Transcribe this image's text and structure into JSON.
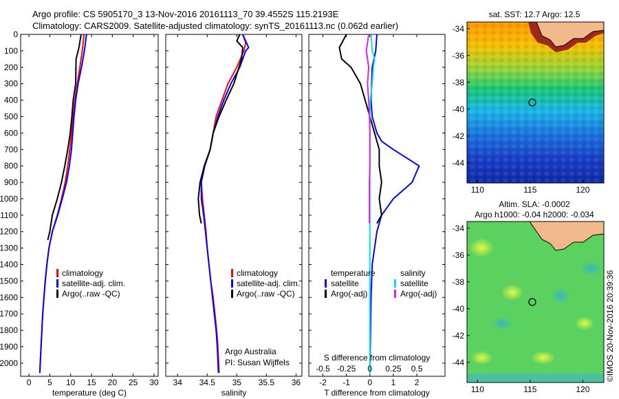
{
  "header": {
    "line1": "Argo profile: CS 5905170_3 13-Nov-2016 20161113_70 39.4552S 115.2193E",
    "line2": "Climatology: CARS2009. Satellite-adjusted climatology: synTS_20161113.nc (0.062d earlier)"
  },
  "chart_data": [
    {
      "type": "line",
      "id": "temperature",
      "xlabel": "temperature (deg C)",
      "ylabel": "",
      "xlim": [
        -2,
        31
      ],
      "ylim": [
        0,
        2080
      ],
      "xticks": [
        0,
        5,
        10,
        15,
        20,
        25,
        30
      ],
      "yticks": [
        0,
        100,
        200,
        300,
        400,
        500,
        600,
        700,
        800,
        900,
        1000,
        1100,
        1200,
        1300,
        1400,
        1500,
        1600,
        1700,
        1800,
        1900,
        2000
      ],
      "y_reversed": true,
      "legend": [
        "climatology",
        "satellite-adj. clim.",
        "Argo(..raw -QC)"
      ],
      "series": [
        {
          "name": "climatology",
          "color": "#ff0000",
          "x": [
            13.2,
            12.8,
            12.2,
            11.6,
            11.0,
            10.6,
            10.2,
            9.8,
            9.3,
            8.7,
            7.8,
            6.8,
            5.6,
            4.8,
            4.3,
            3.9,
            3.6,
            3.3,
            3.1,
            2.9,
            2.7,
            2.6
          ],
          "y": [
            0,
            100,
            200,
            300,
            400,
            500,
            600,
            700,
            800,
            900,
            1000,
            1100,
            1200,
            1300,
            1400,
            1500,
            1600,
            1700,
            1800,
            1900,
            2000,
            2060
          ]
        },
        {
          "name": "satellite-adj. clim.",
          "color": "#0000ff",
          "x": [
            13.8,
            13.3,
            12.6,
            11.8,
            11.2,
            10.8,
            10.5,
            10.2,
            9.7,
            9.0,
            8.0,
            6.9,
            5.6,
            4.8,
            4.3,
            3.9,
            3.6,
            3.3,
            3.1,
            2.9,
            2.7,
            2.6
          ],
          "y": [
            0,
            100,
            200,
            300,
            400,
            500,
            600,
            700,
            800,
            900,
            1000,
            1100,
            1200,
            1300,
            1400,
            1500,
            1600,
            1700,
            1800,
            1900,
            2000,
            2060
          ]
        },
        {
          "name": "Argo(..raw -QC)",
          "color": "#000000",
          "x": [
            12.5,
            12.0,
            11.3,
            11.2,
            10.6,
            10.3,
            9.9,
            9.3,
            8.6,
            7.8,
            6.8,
            5.6,
            5.0,
            4.5
          ],
          "y": [
            0,
            80,
            150,
            300,
            400,
            500,
            600,
            700,
            800,
            900,
            1000,
            1100,
            1200,
            1250
          ]
        }
      ]
    },
    {
      "type": "line",
      "id": "salinity",
      "xlabel": "salinity",
      "xlim": [
        33.8,
        36.1
      ],
      "ylim": [
        0,
        2080
      ],
      "xticks": [
        34,
        34.5,
        35,
        35.5,
        36
      ],
      "y_reversed": true,
      "legend": [
        "climatology",
        "satellite-adj. clim.",
        "Argo(..raw -QC)"
      ],
      "annotation": [
        "Argo Australia",
        "PI: Susan Wijffels"
      ],
      "series": [
        {
          "name": "climatology",
          "color": "#ff0000",
          "x": [
            35.1,
            35.15,
            35.12,
            35.0,
            34.85,
            34.75,
            34.65,
            34.6,
            34.55,
            34.45,
            34.4,
            34.42,
            34.45,
            34.48,
            34.5,
            34.53,
            34.56,
            34.6,
            34.63,
            34.66,
            34.68,
            34.7
          ],
          "y": [
            0,
            50,
            100,
            200,
            300,
            400,
            500,
            600,
            700,
            800,
            900,
            1000,
            1100,
            1200,
            1300,
            1400,
            1500,
            1600,
            1700,
            1800,
            1900,
            2060
          ]
        },
        {
          "name": "satellite-adj. clim.",
          "color": "#0000ff",
          "x": [
            35.1,
            35.2,
            35.15,
            35.05,
            34.9,
            34.78,
            34.68,
            34.6,
            34.55,
            34.46,
            34.4,
            34.4,
            34.44,
            34.47,
            34.5,
            34.53,
            34.56,
            34.59,
            34.62,
            34.65,
            34.67,
            34.69
          ],
          "y": [
            0,
            80,
            100,
            200,
            300,
            400,
            500,
            600,
            700,
            800,
            900,
            1000,
            1100,
            1200,
            1300,
            1400,
            1500,
            1600,
            1700,
            1800,
            1900,
            2060
          ]
        },
        {
          "name": "Argo(..raw -QC)",
          "color": "#000000",
          "x": [
            35.05,
            35.0,
            35.1,
            35.08,
            34.95,
            34.82,
            34.7,
            34.6,
            34.55,
            34.45,
            34.38,
            34.35,
            34.37,
            34.4
          ],
          "y": [
            0,
            40,
            80,
            150,
            300,
            400,
            500,
            600,
            700,
            800,
            900,
            1000,
            1100,
            1150
          ]
        }
      ]
    },
    {
      "type": "line",
      "id": "difference",
      "xlabel": "T difference from climatology",
      "x2label": "S difference from climatology",
      "xlim": [
        -2.6,
        3.2
      ],
      "ylim": [
        0,
        2080
      ],
      "xticks": [
        -2,
        -1,
        0,
        1,
        2
      ],
      "x2ticks": [
        -0.5,
        -0.25,
        0,
        0.25,
        0.5
      ],
      "y_reversed": true,
      "legend_groups": [
        {
          "title": "temperature",
          "items": [
            "satellite",
            "Argo(-adj)"
          ]
        },
        {
          "title": "salinity",
          "items": [
            "satellite",
            "Argo(-adj)"
          ]
        }
      ],
      "series": [
        {
          "name": "temperature satellite",
          "color": "#0000ff",
          "x": [
            0.3,
            0.25,
            0.1,
            0.05,
            0.1,
            0.3,
            0.5,
            1.0,
            2.1,
            1.8,
            1.0,
            0.5,
            0.3,
            0.1,
            0.05,
            0.0
          ],
          "y": [
            0,
            100,
            200,
            400,
            500,
            600,
            650,
            700,
            800,
            900,
            1000,
            1100,
            1200,
            1400,
            1600,
            2060
          ]
        },
        {
          "name": "temperature Argo(-adj)",
          "color": "#000000",
          "x": [
            -1.0,
            -1.3,
            -1.2,
            -0.8,
            -0.4,
            -0.2,
            0.0,
            0.2,
            0.4,
            0.4,
            0.5,
            0.4,
            0.5,
            0.3
          ],
          "y": [
            0,
            80,
            150,
            200,
            300,
            400,
            500,
            600,
            700,
            800,
            900,
            1000,
            1100,
            1150
          ]
        },
        {
          "name": "salinity satellite",
          "color": "#00e5ee",
          "x": [
            0.05,
            0.1,
            0.2,
            0.15,
            0.1,
            0.02,
            0.0,
            0.0,
            0.0,
            0.0,
            0.0,
            0.0,
            0.0,
            0.0,
            0.0,
            0.0
          ],
          "y": [
            0,
            100,
            150,
            200,
            300,
            400,
            500,
            600,
            800,
            1000,
            1200,
            1400,
            1600,
            1800,
            1900,
            2060
          ]
        },
        {
          "name": "salinity Argo(-adj)",
          "color": "#e020e0",
          "x": [
            -0.05,
            -0.15,
            -0.05,
            -0.1,
            -0.05,
            -0.02,
            0.0,
            0.0,
            0.0,
            -0.02,
            -0.02
          ],
          "y": [
            0,
            100,
            200,
            300,
            400,
            500,
            600,
            700,
            800,
            900,
            1150
          ]
        }
      ]
    },
    {
      "type": "heatmap",
      "id": "sst_map",
      "title": "sat. SST: 12.7  Argo: 12.5",
      "xlim": [
        109,
        122
      ],
      "ylim": [
        -45.5,
        -33.5
      ],
      "xticks": [
        110,
        115,
        120
      ],
      "yticks": [
        -34,
        -36,
        -38,
        -40,
        -42,
        -44
      ],
      "marker": {
        "lon": 115.2,
        "lat": -39.5
      }
    },
    {
      "type": "heatmap",
      "id": "sla_map",
      "title": "Altim. SLA: -0.0002",
      "subtitle": "Argo h1000: -0.04 h2000: -0.034",
      "xlim": [
        109,
        122
      ],
      "ylim": [
        -45.5,
        -33.5
      ],
      "xticks": [
        110,
        115,
        120
      ],
      "yticks": [
        -34,
        -36,
        -38,
        -40,
        -42,
        -44
      ],
      "marker": {
        "lon": 115.2,
        "lat": -39.5
      }
    }
  ],
  "side_label": "©IMOS 20-Nov-2016 20:39:36"
}
